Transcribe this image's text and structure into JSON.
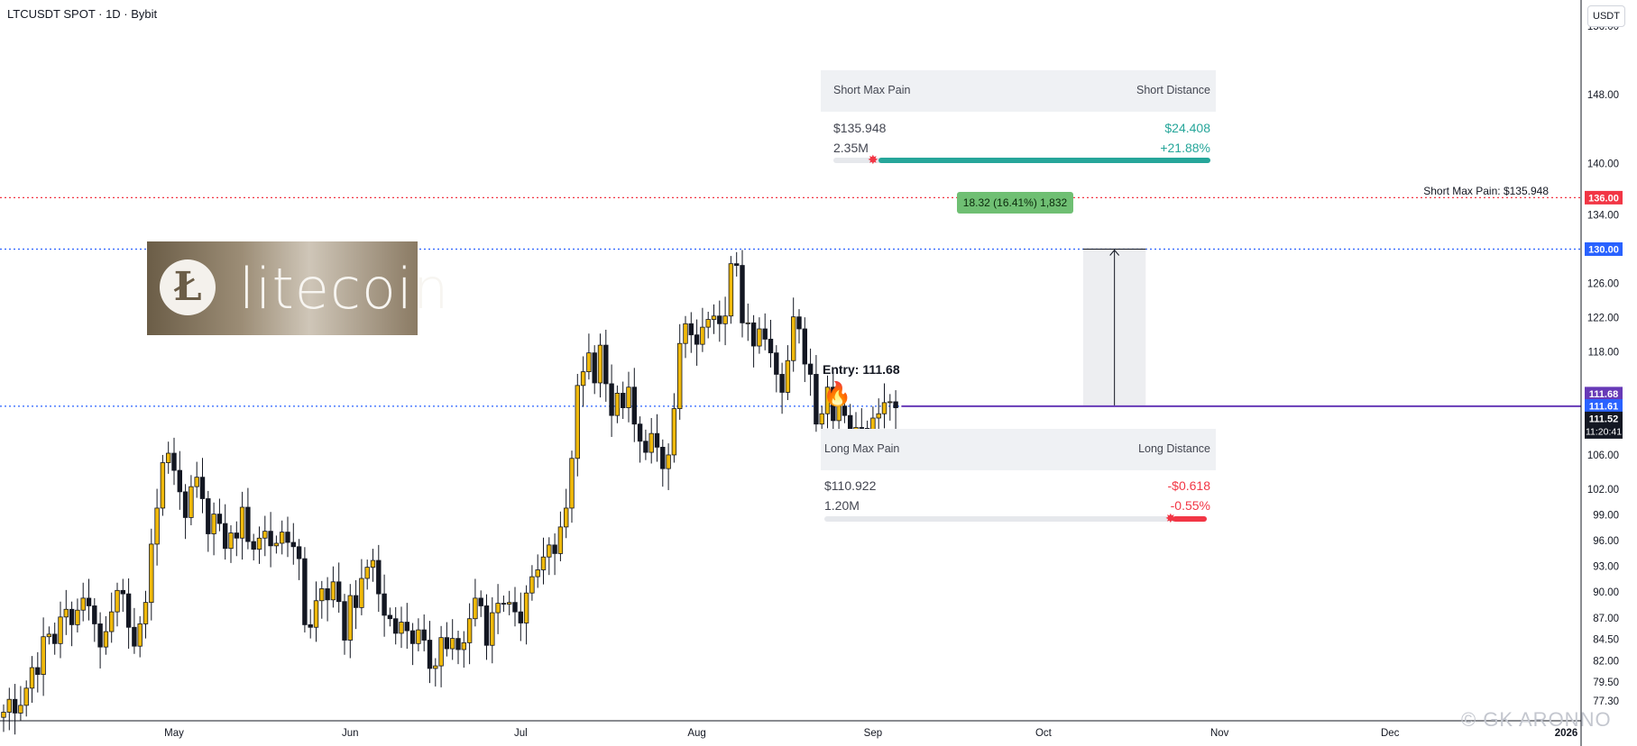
{
  "header": {
    "symbol_title": "LTCUSDT SPOT · 1D · Bybit",
    "currency": "USDT"
  },
  "logo": {
    "mark": "Ł",
    "word": "litecoin"
  },
  "entry": {
    "label": "Entry: 111.68",
    "icon": "fire-icon"
  },
  "measure": {
    "label": "18.32 (16.41%) 1,832"
  },
  "short_panel": {
    "title_left": "Short Max Pain",
    "title_right": "Short Distance",
    "price": "$135.948",
    "distance": "$24.408",
    "volume": "2.35M",
    "pct": "+21.88%",
    "fill": 1.0
  },
  "long_panel": {
    "title_left": "Long Max Pain",
    "title_right": "Long Distance",
    "price": "$110.922",
    "distance": "-$0.618",
    "volume": "1.20M",
    "pct": "-0.55%",
    "fill": 0.09
  },
  "short_max_pain_label": "Short Max Pain: $135.948",
  "watermark": "© GK ARONNO",
  "colors": {
    "up": "#f0b90b",
    "down": "#131722",
    "red_line": "#f23645",
    "blue_line": "#2962ff",
    "purple_line": "#673ab7",
    "teal": "#26a69a",
    "green_tag": "#6fbf73"
  },
  "chart_data": {
    "type": "candlestick",
    "ylim": [
      75,
      158
    ],
    "y_ticks": [
      {
        "v": 156,
        "label": "156.00"
      },
      {
        "v": 148,
        "label": "148.00"
      },
      {
        "v": 140,
        "label": "140.00"
      },
      {
        "v": 134,
        "label": "134.00"
      },
      {
        "v": 126,
        "label": "126.00"
      },
      {
        "v": 122,
        "label": "122.00"
      },
      {
        "v": 118,
        "label": "118.00"
      },
      {
        "v": 106,
        "label": "106.00"
      },
      {
        "v": 102,
        "label": "102.00"
      },
      {
        "v": 99,
        "label": "99.00"
      },
      {
        "v": 96,
        "label": "96.00"
      },
      {
        "v": 93,
        "label": "93.00"
      },
      {
        "v": 90,
        "label": "90.00"
      },
      {
        "v": 87,
        "label": "87.00"
      },
      {
        "v": 84.5,
        "label": "84.50"
      },
      {
        "v": 82,
        "label": "82.00"
      },
      {
        "v": 79.5,
        "label": "79.50"
      },
      {
        "v": 77.3,
        "label": "77.30"
      }
    ],
    "x_ticks": [
      {
        "day": 30,
        "label": "May"
      },
      {
        "day": 61,
        "label": "Jun"
      },
      {
        "day": 91,
        "label": "Jul"
      },
      {
        "day": 122,
        "label": "Aug"
      },
      {
        "day": 153,
        "label": "Sep"
      },
      {
        "day": 183,
        "label": "Oct"
      },
      {
        "day": 214,
        "label": "Nov"
      },
      {
        "day": 244,
        "label": "Dec"
      },
      {
        "day": 275,
        "label": "2026"
      }
    ],
    "price_tags": [
      {
        "v": 136.0,
        "label": "136.00",
        "color": "#f23645"
      },
      {
        "v": 130.0,
        "label": "130.00",
        "color": "#2962ff"
      },
      {
        "v": 111.68,
        "label": "111.68",
        "color": "#673ab7"
      },
      {
        "v": 111.61,
        "label": "111.61",
        "color": "#2962ff"
      },
      {
        "v": 111.52,
        "label": "111.52",
        "color": "#131722"
      }
    ],
    "countdown": "11:20:41",
    "levels": [
      {
        "name": "short-max-pain",
        "v": 136.0,
        "color": "#f23645"
      },
      {
        "name": "target",
        "v": 130.0,
        "color": "#2962ff"
      },
      {
        "name": "entry",
        "v": 111.68,
        "color": "#2962ff"
      }
    ],
    "entry_line": {
      "v": 111.68,
      "from_day": 158
    },
    "measure": {
      "from_day": 190,
      "to_day": 201,
      "low": 111.68,
      "high": 130.0
    },
    "first_day": 0,
    "closes": [
      76.0,
      77.5,
      75.9,
      76.8,
      78.8,
      81.2,
      80.4,
      84.8,
      85.1,
      84.0,
      87.1,
      88.0,
      86.2,
      87.9,
      89.3,
      88.4,
      86.3,
      83.6,
      85.4,
      87.7,
      90.2,
      89.8,
      85.9,
      83.7,
      86.3,
      88.8,
      95.6,
      99.8,
      105.1,
      106.2,
      104.2,
      101.7,
      98.7,
      102.3,
      103.4,
      100.9,
      96.8,
      99.1,
      98.0,
      95.1,
      96.9,
      96.3,
      99.9,
      95.9,
      95.0,
      96.3,
      97.1,
      95.4,
      95.7,
      97.0,
      95.8,
      95.3,
      93.9,
      86.2,
      85.9,
      89.0,
      90.4,
      89.1,
      91.2,
      88.9,
      84.4,
      89.6,
      88.2,
      91.6,
      92.9,
      93.7,
      89.8,
      87.3,
      86.9,
      85.2,
      86.5,
      85.5,
      84.0,
      85.6,
      84.4,
      81.1,
      81.4,
      84.7,
      83.4,
      84.6,
      83.3,
      84.1,
      86.9,
      89.3,
      88.4,
      83.8,
      87.6,
      88.7,
      88.6,
      88.8,
      87.7,
      86.4,
      89.9,
      91.8,
      92.6,
      94.1,
      95.5,
      94.5,
      97.6,
      99.8,
      105.6,
      114.1,
      115.7,
      117.9,
      114.4,
      118.8,
      114.3,
      110.6,
      113.2,
      111.5,
      113.9,
      109.6,
      107.6,
      106.3,
      108.5,
      106.9,
      104.4,
      106.0,
      111.4,
      119.0,
      121.3,
      120.0,
      118.9,
      120.9,
      121.8,
      122.2,
      121.3,
      122.2,
      128.3,
      128.1,
      121.4,
      121.4,
      118.7,
      120.7,
      119.5,
      117.9,
      115.4,
      113.3,
      117.0,
      122.1,
      120.7,
      116.6,
      115.4,
      109.6,
      110.8,
      113.9,
      110.0,
      111.7,
      110.6,
      108.3,
      109.2,
      109.1,
      106.9,
      110.3,
      110.8,
      112.1,
      112.2,
      111.5
    ]
  }
}
